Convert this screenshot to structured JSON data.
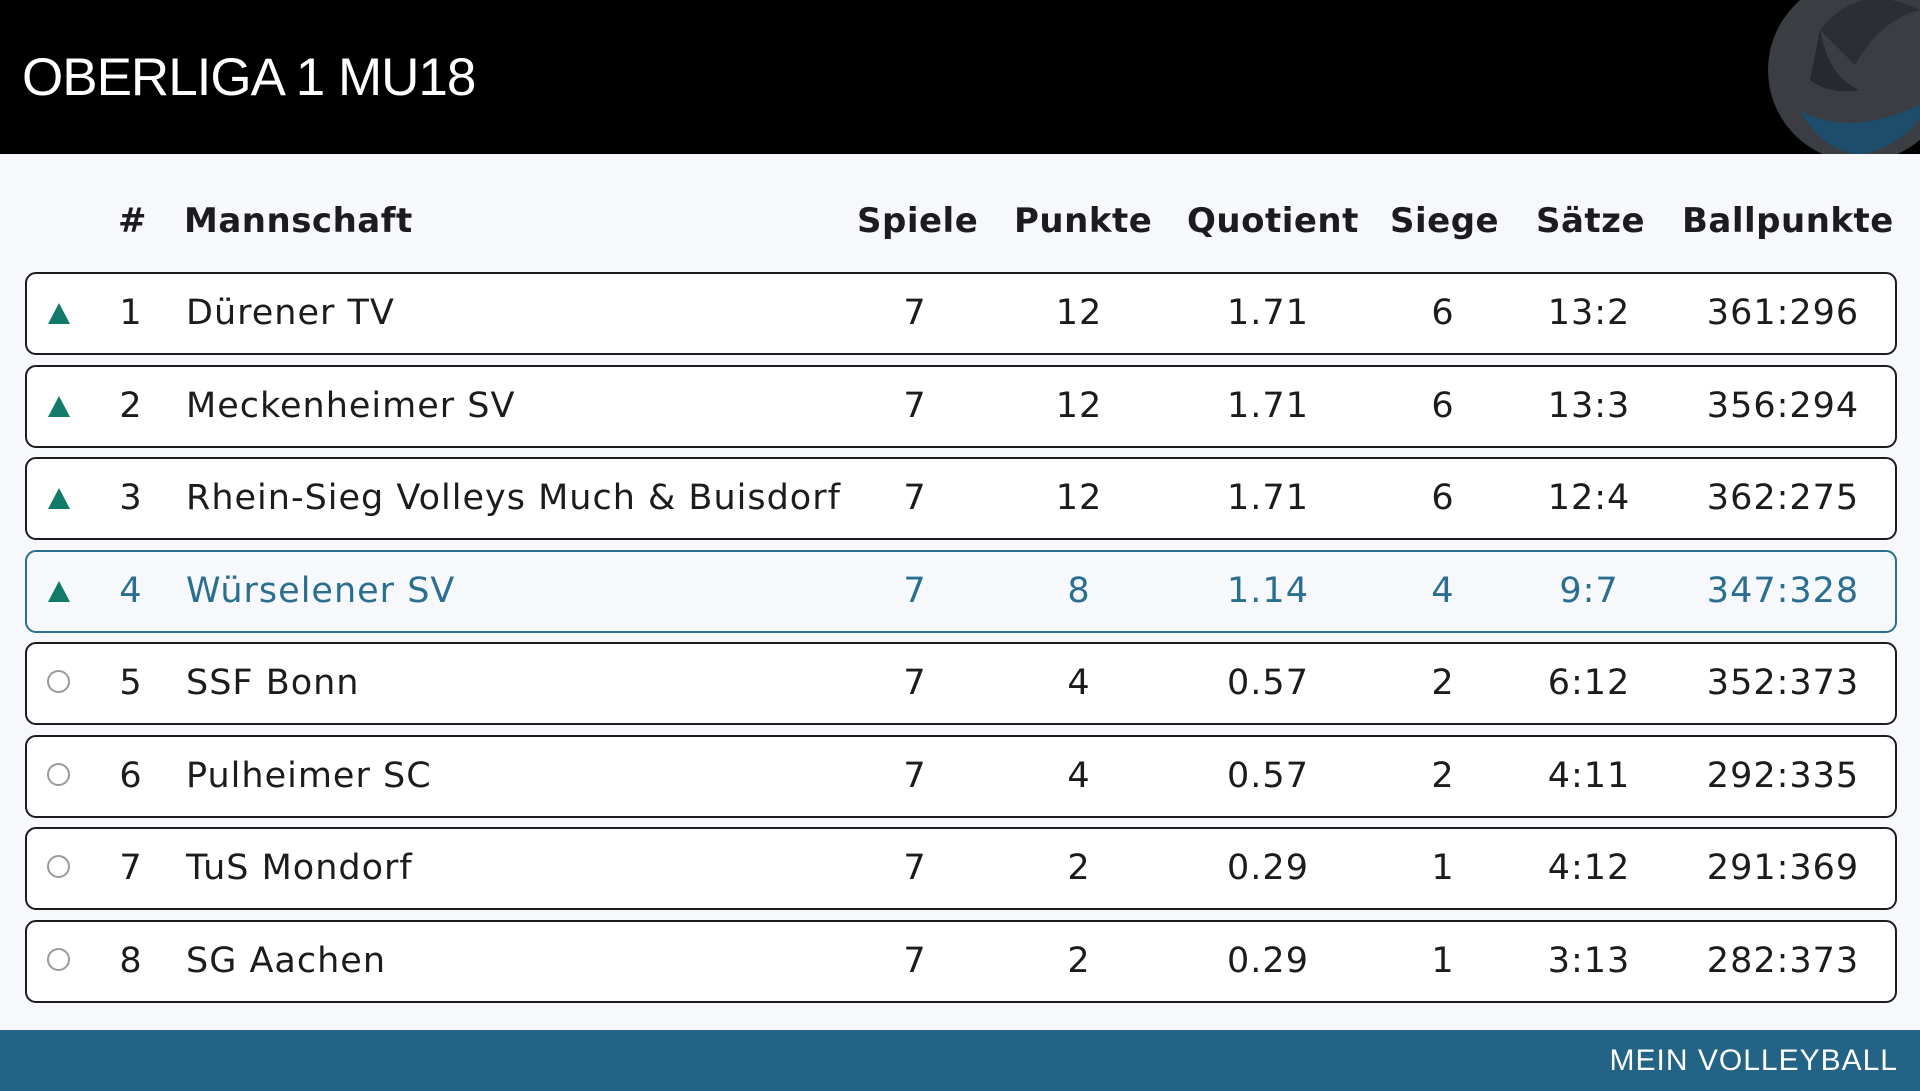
{
  "header": {
    "title": "OBERLIGA 1 MU18",
    "logo_icon": "volleyball-icon"
  },
  "colors": {
    "highlight": "#2a6f8f",
    "trend_up": "#117a68",
    "footer_bg": "#236385",
    "header_bg": "#000000"
  },
  "columns": {
    "rank": "#",
    "team": "Mannschaft",
    "games": "Spiele",
    "points": "Punkte",
    "quotient": "Quotient",
    "wins": "Siege",
    "sets": "Sätze",
    "ballpoints": "Ballpunkte"
  },
  "rows": [
    {
      "trend": "up",
      "rank": "1",
      "team": "Dürener TV",
      "games": "7",
      "points": "12",
      "quotient": "1.71",
      "wins": "6",
      "sets": "13:2",
      "ballpoints": "361:296",
      "highlight": false
    },
    {
      "trend": "up",
      "rank": "2",
      "team": "Meckenheimer SV",
      "games": "7",
      "points": "12",
      "quotient": "1.71",
      "wins": "6",
      "sets": "13:3",
      "ballpoints": "356:294",
      "highlight": false
    },
    {
      "trend": "up",
      "rank": "3",
      "team": "Rhein-Sieg Volleys Much & Buisdorf",
      "games": "7",
      "points": "12",
      "quotient": "1.71",
      "wins": "6",
      "sets": "12:4",
      "ballpoints": "362:275",
      "highlight": false
    },
    {
      "trend": "up",
      "rank": "4",
      "team": "Würselener SV",
      "games": "7",
      "points": "8",
      "quotient": "1.14",
      "wins": "4",
      "sets": "9:7",
      "ballpoints": "347:328",
      "highlight": true
    },
    {
      "trend": "none",
      "rank": "5",
      "team": "SSF Bonn",
      "games": "7",
      "points": "4",
      "quotient": "0.57",
      "wins": "2",
      "sets": "6:12",
      "ballpoints": "352:373",
      "highlight": false
    },
    {
      "trend": "none",
      "rank": "6",
      "team": "Pulheimer SC",
      "games": "7",
      "points": "4",
      "quotient": "0.57",
      "wins": "2",
      "sets": "4:11",
      "ballpoints": "292:335",
      "highlight": false
    },
    {
      "trend": "none",
      "rank": "7",
      "team": "TuS Mondorf",
      "games": "7",
      "points": "2",
      "quotient": "0.29",
      "wins": "1",
      "sets": "4:12",
      "ballpoints": "291:369",
      "highlight": false
    },
    {
      "trend": "none",
      "rank": "8",
      "team": "SG Aachen",
      "games": "7",
      "points": "2",
      "quotient": "0.29",
      "wins": "1",
      "sets": "3:13",
      "ballpoints": "282:373",
      "highlight": false
    }
  ],
  "footer": {
    "brand": "MEIN VOLLEYBALL"
  }
}
